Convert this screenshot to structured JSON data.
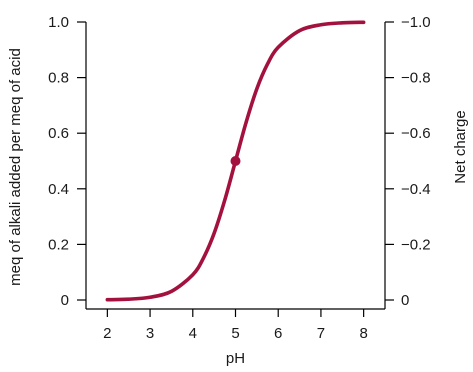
{
  "chart_data": {
    "type": "line",
    "title": "",
    "xlabel": "pH",
    "ylabel": "meq of alkali added per meq of acid",
    "y2label": "Net charge",
    "xlim": [
      1.5,
      8.5
    ],
    "ylim": [
      0,
      1.0
    ],
    "x_ticks": [
      "2",
      "3",
      "4",
      "5",
      "6",
      "7",
      "8"
    ],
    "y_ticks": [
      "0",
      "0.2",
      "0.4",
      "0.6",
      "0.8",
      "1.0"
    ],
    "y2_ticks": [
      "0",
      "−0.2",
      "−0.4",
      "−0.6",
      "−0.8",
      "−1.0"
    ],
    "grid": false,
    "color": "#A3123F",
    "series": [
      {
        "x": [
          2.0,
          2.5,
          3.0,
          3.5,
          4.0,
          4.25,
          4.5,
          4.75,
          5.0,
          5.25,
          5.5,
          5.75,
          6.0,
          6.5,
          7.0,
          7.5,
          8.0
        ],
        "values": [
          0.001,
          0.003,
          0.01,
          0.031,
          0.091,
          0.151,
          0.24,
          0.36,
          0.5,
          0.64,
          0.76,
          0.849,
          0.909,
          0.969,
          0.99,
          0.997,
          0.999
        ]
      }
    ],
    "highlight_point": {
      "x": 5.0,
      "y": 0.5
    }
  }
}
